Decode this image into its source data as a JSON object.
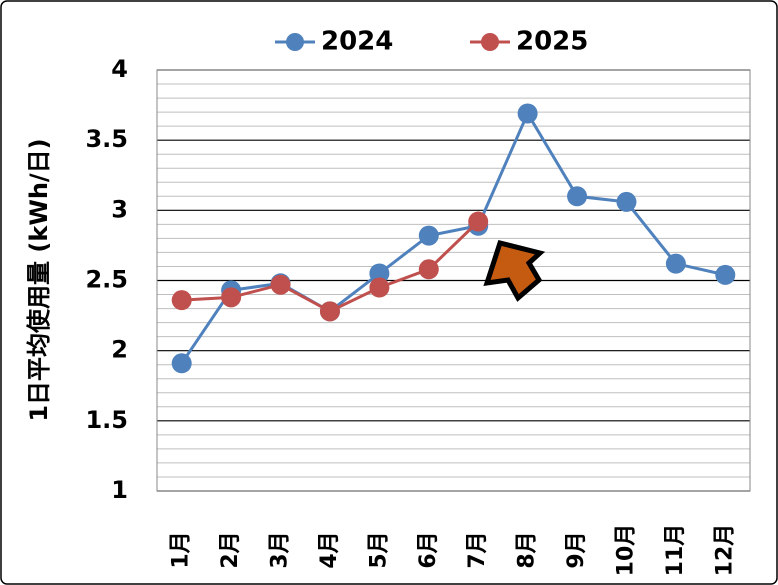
{
  "chart_data": {
    "type": "line",
    "y_label": "1日平均使用量 (kWh/日)",
    "categories": [
      "1月",
      "2月",
      "3月",
      "4月",
      "5月",
      "6月",
      "7月",
      "8月",
      "9月",
      "10月",
      "11月",
      "12月"
    ],
    "series": [
      {
        "name": "2024",
        "color": "#4f81bd",
        "values": [
          1.91,
          2.43,
          2.48,
          2.28,
          2.55,
          2.82,
          2.89,
          3.69,
          3.1,
          3.06,
          2.62,
          2.54
        ]
      },
      {
        "name": "2025",
        "color": "#c0504d",
        "values": [
          2.36,
          2.38,
          2.47,
          2.28,
          2.45,
          2.58,
          2.92,
          null,
          null,
          null,
          null,
          null
        ]
      }
    ],
    "ylim": [
      1,
      4
    ],
    "yticks": [
      1,
      1.5,
      2,
      2.5,
      3,
      3.5,
      4
    ],
    "minor_yticks": [
      1.1,
      1.2,
      1.3,
      1.4,
      1.6,
      1.7,
      1.8,
      1.9,
      2.1,
      2.2,
      2.3,
      2.4,
      2.6,
      2.7,
      2.8,
      2.9,
      3.1,
      3.2,
      3.3,
      3.4,
      3.6,
      3.7,
      3.8,
      3.9
    ],
    "grid": true,
    "legend": "top"
  }
}
